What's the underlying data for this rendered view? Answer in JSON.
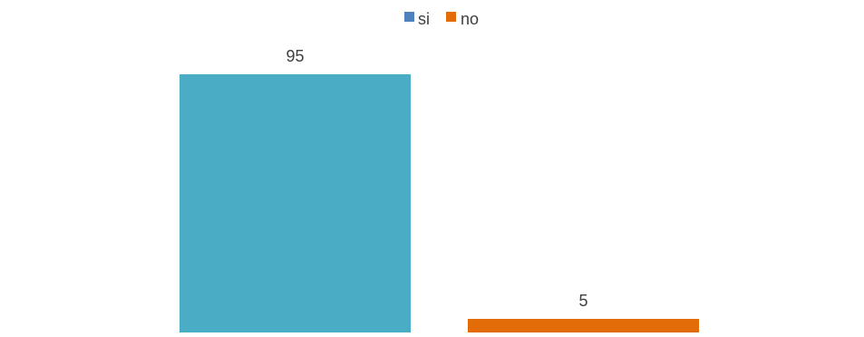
{
  "chart_data": {
    "type": "bar",
    "categories": [
      ""
    ],
    "series": [
      {
        "name": "si",
        "values": [
          95
        ],
        "color": "#4bacc6",
        "legend_color": "#4f81bd"
      },
      {
        "name": "no",
        "values": [
          5
        ],
        "color": "#e36c09",
        "legend_color": "#e36c09"
      }
    ],
    "data_labels": [
      "95",
      "5"
    ],
    "legend": {
      "position": "top",
      "items": [
        "si",
        "no"
      ]
    },
    "grid": false,
    "ylim": [
      0,
      100
    ]
  }
}
